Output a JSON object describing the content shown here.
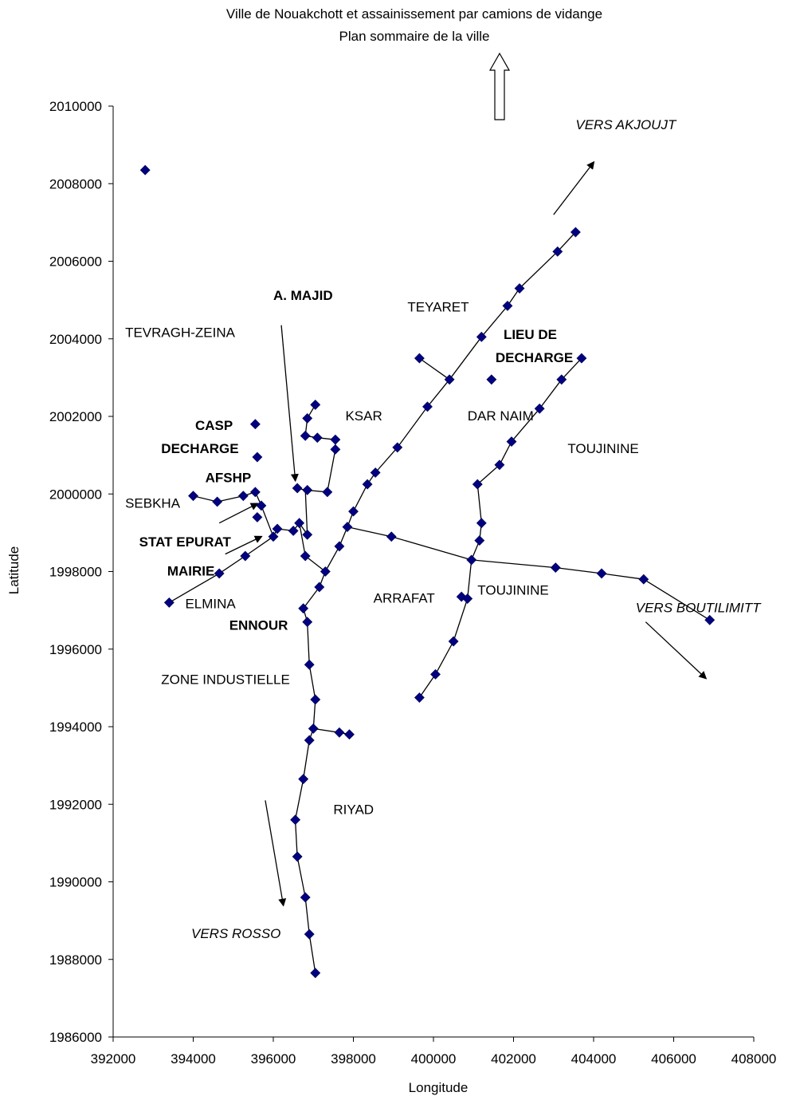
{
  "chart_data": {
    "type": "scatter",
    "title": "Ville de Nouakchott et assainissement par camions de vidange",
    "subtitle": "Plan sommaire de la ville",
    "xlabel": "Longitude",
    "ylabel": "Latitude",
    "xlim": [
      392000,
      408000
    ],
    "ylim": [
      1986000,
      2010000
    ],
    "xticks": [
      "392000",
      "394000",
      "396000",
      "398000",
      "400000",
      "402000",
      "404000",
      "406000",
      "408000"
    ],
    "yticks": [
      "1986000",
      "1988000",
      "1990000",
      "1992000",
      "1994000",
      "1996000",
      "1998000",
      "2000000",
      "2002000",
      "2004000",
      "2006000",
      "2008000",
      "2010000"
    ],
    "grid": false,
    "legend": "none",
    "marker_color": "#000080",
    "points": [
      {
        "x": 392800,
        "y": 2008350
      },
      {
        "x": 393400,
        "y": 1997200
      },
      {
        "x": 394000,
        "y": 1999950
      },
      {
        "x": 394600,
        "y": 1999800
      },
      {
        "x": 394650,
        "y": 1997950
      },
      {
        "x": 395250,
        "y": 1999950
      },
      {
        "x": 395300,
        "y": 1998400
      },
      {
        "x": 395550,
        "y": 2001800
      },
      {
        "x": 395600,
        "y": 2000950
      },
      {
        "x": 395550,
        "y": 2000050
      },
      {
        "x": 395700,
        "y": 1999700
      },
      {
        "x": 395600,
        "y": 1999400
      },
      {
        "x": 396000,
        "y": 1998900
      },
      {
        "x": 396100,
        "y": 1999100
      },
      {
        "x": 396500,
        "y": 1999050
      },
      {
        "x": 396650,
        "y": 1999250
      },
      {
        "x": 396600,
        "y": 2000150
      },
      {
        "x": 396750,
        "y": 1997050
      },
      {
        "x": 396800,
        "y": 1998400
      },
      {
        "x": 396850,
        "y": 1996700
      },
      {
        "x": 396850,
        "y": 1998950
      },
      {
        "x": 396800,
        "y": 2001500
      },
      {
        "x": 396850,
        "y": 2001950
      },
      {
        "x": 396850,
        "y": 2000100
      },
      {
        "x": 397050,
        "y": 2002300
      },
      {
        "x": 397100,
        "y": 2001450
      },
      {
        "x": 397350,
        "y": 2000050
      },
      {
        "x": 397550,
        "y": 2001400
      },
      {
        "x": 397550,
        "y": 2001150
      },
      {
        "x": 397300,
        "y": 1998000
      },
      {
        "x": 397150,
        "y": 1997600
      },
      {
        "x": 396900,
        "y": 1995600
      },
      {
        "x": 397050,
        "y": 1994700
      },
      {
        "x": 397000,
        "y": 1993950
      },
      {
        "x": 396900,
        "y": 1993650
      },
      {
        "x": 397650,
        "y": 1993850
      },
      {
        "x": 397900,
        "y": 1993800
      },
      {
        "x": 396750,
        "y": 1992650
      },
      {
        "x": 396550,
        "y": 1991600
      },
      {
        "x": 396600,
        "y": 1990650
      },
      {
        "x": 396800,
        "y": 1989600
      },
      {
        "x": 396900,
        "y": 1988650
      },
      {
        "x": 397050,
        "y": 1987650
      },
      {
        "x": 397650,
        "y": 1998650
      },
      {
        "x": 397850,
        "y": 1999150
      },
      {
        "x": 398000,
        "y": 1999550
      },
      {
        "x": 398350,
        "y": 2000250
      },
      {
        "x": 398550,
        "y": 2000550
      },
      {
        "x": 399100,
        "y": 2001200
      },
      {
        "x": 398950,
        "y": 1998900
      },
      {
        "x": 399850,
        "y": 2002250
      },
      {
        "x": 399650,
        "y": 2003500
      },
      {
        "x": 400400,
        "y": 2002950
      },
      {
        "x": 401200,
        "y": 2004050
      },
      {
        "x": 401450,
        "y": 2002950
      },
      {
        "x": 401850,
        "y": 2004850
      },
      {
        "x": 402150,
        "y": 2005300
      },
      {
        "x": 403100,
        "y": 2006250
      },
      {
        "x": 403550,
        "y": 2006750
      },
      {
        "x": 403700,
        "y": 2003500
      },
      {
        "x": 403200,
        "y": 2002950
      },
      {
        "x": 402650,
        "y": 2002200
      },
      {
        "x": 401950,
        "y": 2001350
      },
      {
        "x": 401650,
        "y": 2000750
      },
      {
        "x": 401100,
        "y": 2000250
      },
      {
        "x": 401200,
        "y": 1999250
      },
      {
        "x": 401150,
        "y": 1998800
      },
      {
        "x": 400950,
        "y": 1998300
      },
      {
        "x": 400700,
        "y": 1997350
      },
      {
        "x": 400850,
        "y": 1997300
      },
      {
        "x": 400500,
        "y": 1996200
      },
      {
        "x": 400050,
        "y": 1995350
      },
      {
        "x": 399650,
        "y": 1994750
      },
      {
        "x": 403050,
        "y": 1998100
      },
      {
        "x": 404200,
        "y": 1997950
      },
      {
        "x": 405250,
        "y": 1997800
      },
      {
        "x": 406900,
        "y": 1996750
      }
    ],
    "lines": [
      [
        [
          396850,
          1996700
        ],
        [
          396900,
          1995600
        ],
        [
          397050,
          1994700
        ],
        [
          397000,
          1993950
        ],
        [
          396900,
          1993650
        ],
        [
          396750,
          1992650
        ],
        [
          396550,
          1991600
        ],
        [
          396600,
          1990650
        ],
        [
          396800,
          1989600
        ],
        [
          396900,
          1988650
        ],
        [
          397050,
          1987650
        ]
      ],
      [
        [
          397000,
          1993950
        ],
        [
          397650,
          1993850
        ],
        [
          397900,
          1993800
        ]
      ],
      [
        [
          396850,
          1996700
        ],
        [
          396750,
          1997050
        ],
        [
          397150,
          1997600
        ],
        [
          397300,
          1998000
        ],
        [
          397650,
          1998650
        ],
        [
          397850,
          1999150
        ],
        [
          398000,
          1999550
        ],
        [
          398350,
          2000250
        ],
        [
          398550,
          2000550
        ],
        [
          399100,
          2001200
        ],
        [
          399850,
          2002250
        ],
        [
          400400,
          2002950
        ],
        [
          401200,
          2004050
        ],
        [
          401850,
          2004850
        ],
        [
          402150,
          2005300
        ],
        [
          403100,
          2006250
        ],
        [
          403550,
          2006750
        ]
      ],
      [
        [
          399650,
          2003500
        ],
        [
          400400,
          2002950
        ]
      ],
      [
        [
          397850,
          1999150
        ],
        [
          398950,
          1998900
        ],
        [
          400950,
          1998300
        ],
        [
          403050,
          1998100
        ],
        [
          404200,
          1997950
        ],
        [
          405250,
          1997800
        ],
        [
          406900,
          1996750
        ]
      ],
      [
        [
          399650,
          1994750
        ],
        [
          400050,
          1995350
        ],
        [
          400500,
          1996200
        ],
        [
          400850,
          1997300
        ],
        [
          400950,
          1998300
        ],
        [
          401150,
          1998800
        ],
        [
          401200,
          1999250
        ],
        [
          401100,
          2000250
        ],
        [
          401650,
          2000750
        ],
        [
          401950,
          2001350
        ],
        [
          402650,
          2002200
        ],
        [
          403200,
          2002950
        ],
        [
          403700,
          2003500
        ]
      ],
      [
        [
          393400,
          1997200
        ],
        [
          394650,
          1997950
        ],
        [
          395300,
          1998400
        ],
        [
          396000,
          1998900
        ],
        [
          396100,
          1999100
        ],
        [
          396500,
          1999050
        ],
        [
          396650,
          1999250
        ],
        [
          396850,
          1998950
        ]
      ],
      [
        [
          394000,
          1999950
        ],
        [
          394600,
          1999800
        ],
        [
          395250,
          1999950
        ],
        [
          395550,
          2000050
        ],
        [
          395700,
          1999700
        ],
        [
          396000,
          1998900
        ]
      ],
      [
        [
          396850,
          1998950
        ],
        [
          396800,
          2000100
        ],
        [
          396600,
          2000150
        ]
      ],
      [
        [
          396800,
          2000100
        ],
        [
          397350,
          2000050
        ],
        [
          397550,
          2001150
        ],
        [
          397550,
          2001400
        ],
        [
          397100,
          2001450
        ],
        [
          396800,
          2001500
        ],
        [
          396850,
          2001950
        ],
        [
          397050,
          2002300
        ]
      ],
      [
        [
          396650,
          1999250
        ],
        [
          396800,
          1998400
        ],
        [
          397300,
          1998000
        ]
      ]
    ],
    "labels": [
      {
        "text": "TEVRAGH-ZEINA",
        "x": 392300,
        "y": 2004050,
        "style": "normal"
      },
      {
        "text": "A. MAJID",
        "x": 396000,
        "y": 2005000,
        "style": "bold"
      },
      {
        "text": "TEYARET",
        "x": 399350,
        "y": 2004700,
        "style": "normal"
      },
      {
        "text": "LIEU DE",
        "x": 401750,
        "y": 2004000,
        "style": "bold"
      },
      {
        "text": "DECHARGE",
        "x": 401550,
        "y": 2003400,
        "style": "bold"
      },
      {
        "text": "KSAR",
        "x": 397800,
        "y": 2001900,
        "style": "normal"
      },
      {
        "text": "DAR  NAIM",
        "x": 400850,
        "y": 2001900,
        "style": "normal"
      },
      {
        "text": "TOUJININE",
        "x": 403350,
        "y": 2001050,
        "style": "normal"
      },
      {
        "text": "CASP",
        "x": 394050,
        "y": 2001650,
        "style": "bold"
      },
      {
        "text": "DECHARGE",
        "x": 393200,
        "y": 2001050,
        "style": "bold"
      },
      {
        "text": "AFSHP",
        "x": 394300,
        "y": 2000300,
        "style": "bold"
      },
      {
        "text": "SEBKHA",
        "x": 392300,
        "y": 1999650,
        "style": "normal"
      },
      {
        "text": "STAT EPURAT",
        "x": 392650,
        "y": 1998650,
        "style": "bold"
      },
      {
        "text": "MAIRIE",
        "x": 393350,
        "y": 1997900,
        "style": "bold"
      },
      {
        "text": "ELMINA",
        "x": 393800,
        "y": 1997050,
        "style": "normal"
      },
      {
        "text": "ARRAFAT",
        "x": 398500,
        "y": 1997200,
        "style": "normal"
      },
      {
        "text": "TOUJININE",
        "x": 401100,
        "y": 1997400,
        "style": "normal"
      },
      {
        "text": "VERS BOUTILIMITT",
        "x": 405050,
        "y": 1996950,
        "style": "italic"
      },
      {
        "text": "ENNOUR",
        "x": 394900,
        "y": 1996500,
        "style": "bold"
      },
      {
        "text": "ZONE INDUSTIELLE",
        "x": 393200,
        "y": 1995100,
        "style": "normal"
      },
      {
        "text": "RIYAD",
        "x": 397500,
        "y": 1991750,
        "style": "normal"
      },
      {
        "text": "VERS ROSSO",
        "x": 393950,
        "y": 1988550,
        "style": "italic"
      },
      {
        "text": "VERS AKJOUJT",
        "x": 403550,
        "y": 2009400,
        "style": "italic"
      }
    ],
    "arrows": [
      {
        "from": [
          403000,
          2007200
        ],
        "to": [
          404000,
          2008550
        ]
      },
      {
        "from": [
          405300,
          1996700
        ],
        "to": [
          406800,
          1995250
        ]
      },
      {
        "from": [
          395800,
          1992100
        ],
        "to": [
          396250,
          1989400
        ]
      },
      {
        "from": [
          396200,
          2004350
        ],
        "to": [
          396550,
          2000350
        ]
      },
      {
        "from": [
          394650,
          1999250
        ],
        "to": [
          395600,
          1999750
        ]
      },
      {
        "from": [
          394800,
          1998450
        ],
        "to": [
          395700,
          1998900
        ]
      }
    ],
    "north_arrow": true
  }
}
